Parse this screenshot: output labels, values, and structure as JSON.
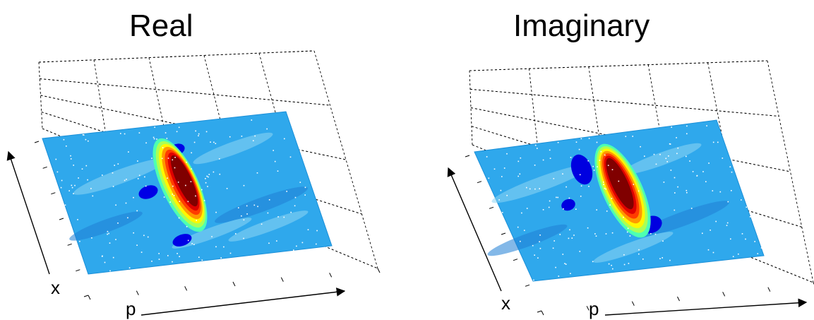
{
  "chart_data": [
    {
      "type": "surface",
      "title": "Real",
      "xlabel": "p",
      "ylabel": "x",
      "grid": true,
      "view": "3d-oblique",
      "colormap": "jet",
      "features": [
        {
          "kind": "peak",
          "level": 1.0
        },
        {
          "kind": "trough",
          "level": -0.6
        }
      ]
    },
    {
      "type": "surface",
      "title": "Imaginary",
      "xlabel": "p",
      "ylabel": "x",
      "grid": true,
      "view": "3d-oblique",
      "colormap": "jet",
      "features": [
        {
          "kind": "peak",
          "level": 1.0
        },
        {
          "kind": "trough",
          "level": -0.7
        }
      ]
    }
  ]
}
